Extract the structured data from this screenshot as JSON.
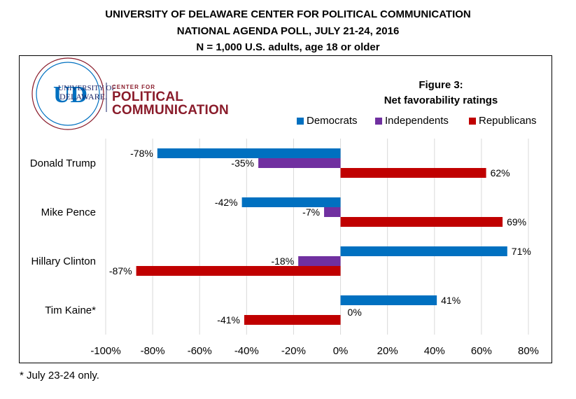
{
  "header": {
    "line1": "UNIVERSITY OF DELAWARE CENTER FOR POLITICAL COMMUNICATION",
    "line2": "NATIONAL AGENDA POLL, JULY 21-24, 2016",
    "line3": "N = 1,000 U.S. adults, age 18 or older"
  },
  "logo": {
    "monogram": "UD",
    "university_line1": "UNIVERSITY OF",
    "university_line2": "DELAWARE.",
    "center_for": "CENTER FOR",
    "political": "POLITICAL",
    "communication": "COMMUNICATION"
  },
  "figure": {
    "label": "Figure 3:",
    "subtitle": "Net favorability ratings"
  },
  "footnote": "* July 23-24 only.",
  "colors": {
    "democrats": "#0070C0",
    "independents": "#7030A0",
    "republicans": "#C00000",
    "grid": "#D9D9D9"
  },
  "chart_data": {
    "type": "bar",
    "orientation": "horizontal",
    "title": "Net favorability ratings",
    "categories": [
      "Donald Trump",
      "Mike Pence",
      "Hillary Clinton",
      "Tim Kaine*"
    ],
    "series": [
      {
        "name": "Democrats",
        "values": [
          -78,
          -42,
          71,
          41
        ]
      },
      {
        "name": "Independents",
        "values": [
          -35,
          -7,
          -18,
          0
        ]
      },
      {
        "name": "Republicans",
        "values": [
          62,
          69,
          -87,
          -41
        ]
      }
    ],
    "value_unit": "%",
    "xlim": [
      -100,
      80
    ],
    "xticks": [
      -100,
      -80,
      -60,
      -40,
      -20,
      0,
      20,
      40,
      60,
      80
    ],
    "xtick_labels": [
      "-100%",
      "-80%",
      "-60%",
      "-40%",
      "-20%",
      "0%",
      "20%",
      "40%",
      "60%",
      "80%"
    ],
    "grid": true,
    "legend": "top-right"
  }
}
